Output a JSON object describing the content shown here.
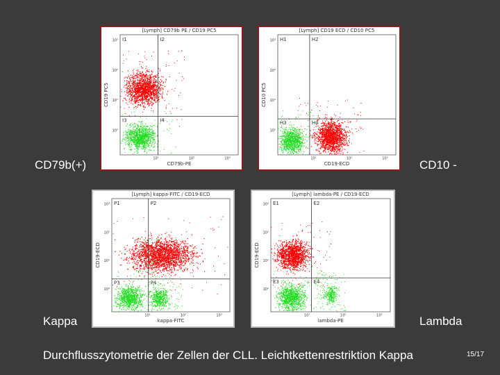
{
  "slide": {
    "panels": [
      {
        "title": "[Lymph] CD79b PE / CD19 PC5",
        "quadrants": [
          "I1",
          "I2",
          "I3",
          "I4"
        ],
        "x_label": "CD79b-PE",
        "y_label": "CD19 PC5",
        "x_ticks": [
          "10¹",
          "10²",
          "10³"
        ],
        "y_ticks": [
          "10³",
          "10²",
          "10¹",
          "10⁰"
        ],
        "side_label": "CD79b(+)"
      },
      {
        "title": "[Lymph] CD19 ECD / CD10 PC5",
        "quadrants": [
          "H1",
          "H2",
          "H3",
          "H4"
        ],
        "x_label": "CD19-ECD",
        "y_label": "CD10 PC5",
        "x_ticks": [
          "10¹",
          "10²",
          "10³"
        ],
        "y_ticks": [
          "10³",
          "10²",
          "10¹",
          "10⁰"
        ],
        "side_label": "CD10 -"
      },
      {
        "title": "[Lymph] kappa-FITC / CD19-ECD",
        "quadrants": [
          "P1",
          "P2",
          "P3",
          "P4"
        ],
        "x_label": "kappa-FITC",
        "y_label": "CD19-ECD",
        "x_ticks": [
          "10¹",
          "10²",
          "10³"
        ],
        "y_ticks": [
          "10³",
          "10²",
          "10¹",
          "10⁰"
        ],
        "side_label": "Kappa"
      },
      {
        "title": "[Lymph] lambda-PE / CD19-ECD",
        "quadrants": [
          "E1",
          "E2",
          "E3",
          "E4"
        ],
        "x_label": "lambda-PE",
        "y_label": "CD19-ECD",
        "x_ticks": [
          "10¹",
          "10²",
          "10³"
        ],
        "y_ticks": [
          "10³",
          "10²",
          "10¹",
          "10⁰"
        ],
        "side_label": "Lambda"
      }
    ],
    "caption": "Durchflusszytometrie der Zellen der CLL. Leichtkettenrestriktion Kappa",
    "page": "15/17"
  }
}
